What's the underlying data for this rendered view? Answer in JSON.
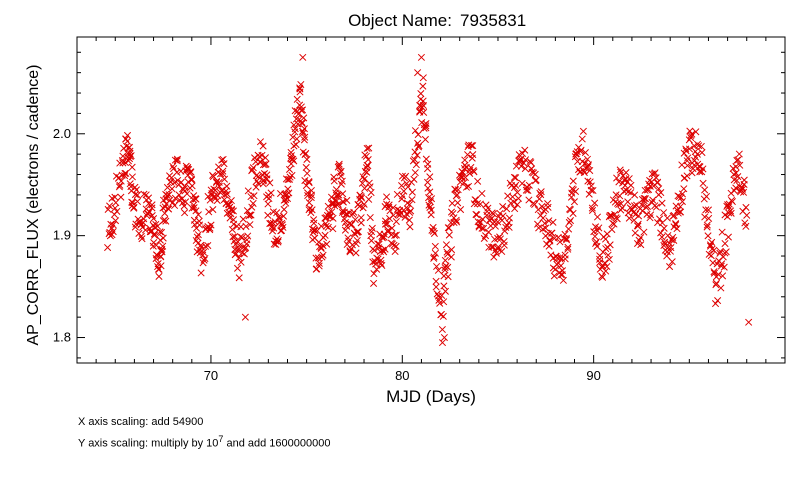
{
  "chart_data": {
    "type": "scatter",
    "title_prefix": "Object Name:",
    "title_value": "7935831",
    "xlabel": "MJD (Days)",
    "ylabel": "AP_CORR_FLUX (electrons / cadence)",
    "xlim": [
      63,
      100
    ],
    "ylim": [
      1.775,
      2.095
    ],
    "xticks": [
      70,
      80,
      90
    ],
    "yticks": [
      1.8,
      1.9,
      2.0
    ],
    "xtick_labels": [
      "70",
      "80",
      "90"
    ],
    "ytick_labels": [
      "1.8",
      "1.9",
      "2.0"
    ],
    "marker": "x",
    "color": "#dd0000",
    "grid": false,
    "series": [
      {
        "anchors": [
          [
            64.6,
            1.905
          ],
          [
            65.0,
            1.935
          ],
          [
            65.4,
            1.96
          ],
          [
            65.7,
            1.99
          ],
          [
            65.9,
            1.94
          ],
          [
            66.3,
            1.91
          ],
          [
            66.7,
            1.93
          ],
          [
            67.0,
            1.905
          ],
          [
            67.3,
            1.88
          ],
          [
            67.5,
            1.91
          ],
          [
            67.8,
            1.94
          ],
          [
            68.2,
            1.955
          ],
          [
            68.6,
            1.94
          ],
          [
            68.9,
            1.96
          ],
          [
            69.2,
            1.92
          ],
          [
            69.5,
            1.88
          ],
          [
            69.9,
            1.92
          ],
          [
            70.2,
            1.95
          ],
          [
            70.6,
            1.96
          ],
          [
            70.9,
            1.93
          ],
          [
            71.2,
            1.9
          ],
          [
            71.5,
            1.88
          ],
          [
            71.9,
            1.92
          ],
          [
            72.3,
            1.96
          ],
          [
            72.7,
            1.975
          ],
          [
            73.0,
            1.935
          ],
          [
            73.4,
            1.905
          ],
          [
            73.8,
            1.93
          ],
          [
            74.1,
            1.96
          ],
          [
            74.4,
            2.0
          ],
          [
            74.7,
            2.04
          ],
          [
            74.9,
            1.98
          ],
          [
            75.2,
            1.93
          ],
          [
            75.5,
            1.885
          ],
          [
            75.9,
            1.895
          ],
          [
            76.3,
            1.92
          ],
          [
            76.6,
            1.955
          ],
          [
            76.9,
            1.935
          ],
          [
            77.2,
            1.905
          ],
          [
            77.6,
            1.9
          ],
          [
            77.9,
            1.935
          ],
          [
            78.2,
            1.98
          ],
          [
            78.5,
            1.86
          ],
          [
            78.9,
            1.89
          ],
          [
            79.2,
            1.92
          ],
          [
            79.6,
            1.905
          ],
          [
            80.0,
            1.95
          ],
          [
            80.4,
            1.92
          ],
          [
            80.8,
            2.0
          ],
          [
            81.1,
            2.04
          ],
          [
            81.4,
            1.95
          ],
          [
            81.7,
            1.88
          ],
          [
            82.1,
            1.83
          ],
          [
            82.4,
            1.885
          ],
          [
            82.8,
            1.93
          ],
          [
            83.2,
            1.96
          ],
          [
            83.6,
            1.975
          ],
          [
            84.0,
            1.925
          ],
          [
            84.5,
            1.91
          ],
          [
            84.9,
            1.895
          ],
          [
            85.3,
            1.91
          ],
          [
            85.8,
            1.94
          ],
          [
            86.2,
            1.965
          ],
          [
            86.7,
            1.955
          ],
          [
            87.2,
            1.925
          ],
          [
            87.6,
            1.91
          ],
          [
            88.0,
            1.88
          ],
          [
            88.4,
            1.875
          ],
          [
            88.8,
            1.925
          ],
          [
            89.2,
            1.975
          ],
          [
            89.6,
            1.985
          ],
          [
            90.0,
            1.925
          ],
          [
            90.4,
            1.87
          ],
          [
            90.8,
            1.895
          ],
          [
            91.2,
            1.935
          ],
          [
            91.6,
            1.955
          ],
          [
            92.0,
            1.925
          ],
          [
            92.4,
            1.905
          ],
          [
            92.8,
            1.935
          ],
          [
            93.2,
            1.945
          ],
          [
            93.6,
            1.915
          ],
          [
            94.0,
            1.885
          ],
          [
            94.4,
            1.93
          ],
          [
            94.8,
            1.975
          ],
          [
            95.2,
            1.985
          ],
          [
            95.6,
            1.975
          ],
          [
            96.0,
            1.905
          ],
          [
            96.4,
            1.845
          ],
          [
            96.8,
            1.89
          ],
          [
            97.2,
            1.94
          ],
          [
            97.6,
            1.965
          ],
          [
            98.0,
            1.92
          ]
        ],
        "extra_points": [
          [
            74.8,
            2.075
          ],
          [
            81.0,
            2.075
          ],
          [
            81.1,
            2.055
          ],
          [
            82.1,
            1.795
          ],
          [
            82.2,
            1.8
          ],
          [
            98.1,
            1.815
          ],
          [
            71.8,
            1.82
          ],
          [
            80.8,
            2.06
          ]
        ]
      }
    ]
  },
  "notes": {
    "x_scaling": "X axis scaling: add 54900",
    "y_scaling_prefix": "Y axis scaling: multiply by 10",
    "y_scaling_exp": "7",
    "y_scaling_suffix": " and add 1600000000"
  }
}
